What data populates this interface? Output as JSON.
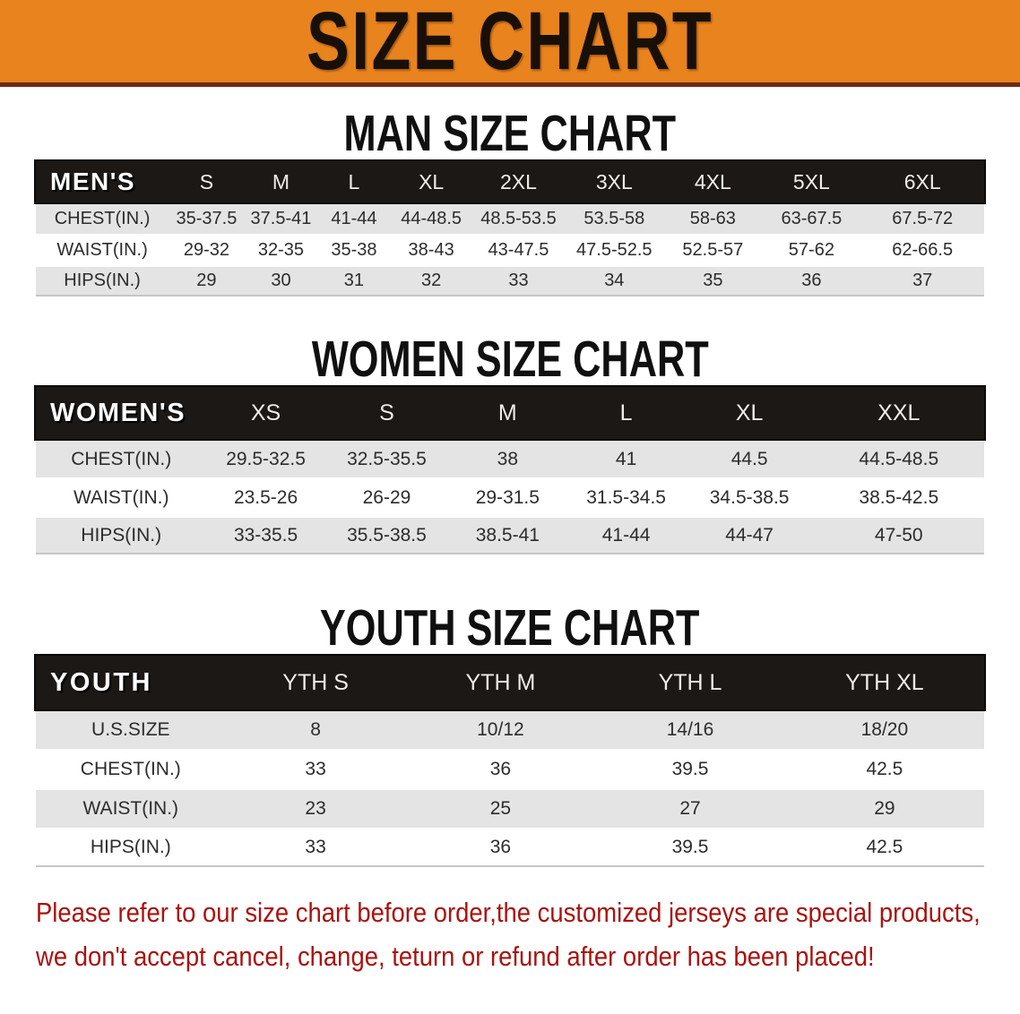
{
  "banner": {
    "title": "SIZE CHART",
    "bg_color": "#E8831E"
  },
  "sections": [
    {
      "title": "MAN SIZE CHART",
      "table": {
        "header_label": "MEN'S",
        "columns": [
          "S",
          "M",
          "L",
          "XL",
          "2XL",
          "3XL",
          "4XL",
          "5XL",
          "6XL"
        ],
        "rows": [
          {
            "label": "CHEST(IN.)",
            "values": [
              "35-37.5",
              "37.5-41",
              "41-44",
              "44-48.5",
              "48.5-53.5",
              "53.5-58",
              "58-63",
              "63-67.5",
              "67.5-72"
            ]
          },
          {
            "label": "WAIST(IN.)",
            "values": [
              "29-32",
              "32-35",
              "35-38",
              "38-43",
              "43-47.5",
              "47.5-52.5",
              "52.5-57",
              "57-62",
              "62-66.5"
            ]
          },
          {
            "label": "HIPS(IN.)",
            "values": [
              "29",
              "30",
              "31",
              "32",
              "33",
              "34",
              "35",
              "36",
              "37"
            ]
          }
        ]
      }
    },
    {
      "title": "WOMEN SIZE CHART",
      "table": {
        "header_label": "WOMEN'S",
        "columns": [
          "XS",
          "S",
          "M",
          "L",
          "XL",
          "XXL"
        ],
        "rows": [
          {
            "label": "CHEST(IN.)",
            "values": [
              "29.5-32.5",
              "32.5-35.5",
              "38",
              "41",
              "44.5",
              "44.5-48.5"
            ]
          },
          {
            "label": "WAIST(IN.)",
            "values": [
              "23.5-26",
              "26-29",
              "29-31.5",
              "31.5-34.5",
              "34.5-38.5",
              "38.5-42.5"
            ]
          },
          {
            "label": "HIPS(IN.)",
            "values": [
              "33-35.5",
              "35.5-38.5",
              "38.5-41",
              "41-44",
              "44-47",
              "47-50"
            ]
          }
        ]
      }
    },
    {
      "title": "YOUTH SIZE CHART",
      "table": {
        "header_label": "YOUTH",
        "columns": [
          "YTH S",
          "YTH M",
          "YTH L",
          "YTH XL"
        ],
        "rows": [
          {
            "label": "U.S.SIZE",
            "values": [
              "8",
              "10/12",
              "14/16",
              "18/20"
            ]
          },
          {
            "label": "CHEST(IN.)",
            "values": [
              "33",
              "36",
              "39.5",
              "42.5"
            ]
          },
          {
            "label": "WAIST(IN.)",
            "values": [
              "23",
              "25",
              "27",
              "29"
            ]
          },
          {
            "label": "HIPS(IN.)",
            "values": [
              "33",
              "36",
              "39.5",
              "42.5"
            ]
          }
        ]
      }
    }
  ],
  "disclaimer": {
    "line1": "Please refer to our size chart before order,the customized jerseys are special products,",
    "line2": "we don't accept cancel, change, teturn or refund after order has been placed!",
    "color": "#A81410"
  }
}
